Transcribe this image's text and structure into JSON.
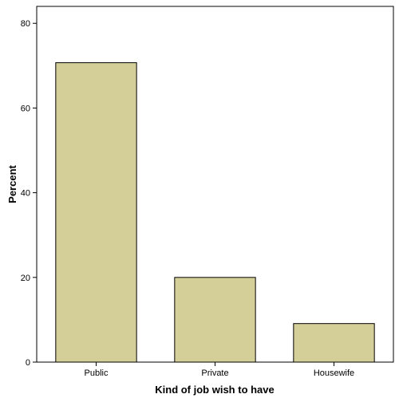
{
  "chart_data": {
    "type": "bar",
    "categories": [
      "Public",
      "Private",
      "Housewife"
    ],
    "values": [
      70.7,
      20.0,
      9.1
    ],
    "xlabel": "Kind of job wish to have",
    "ylabel": "Percent",
    "ylim": [
      0,
      84
    ],
    "yticks": [
      0,
      20,
      40,
      60,
      80
    ],
    "grid": false,
    "legend": "none",
    "colors": {
      "bar_fill": "#d4cf98",
      "bar_stroke": "#000000",
      "axis": "#000000",
      "background": "#ffffff"
    }
  }
}
